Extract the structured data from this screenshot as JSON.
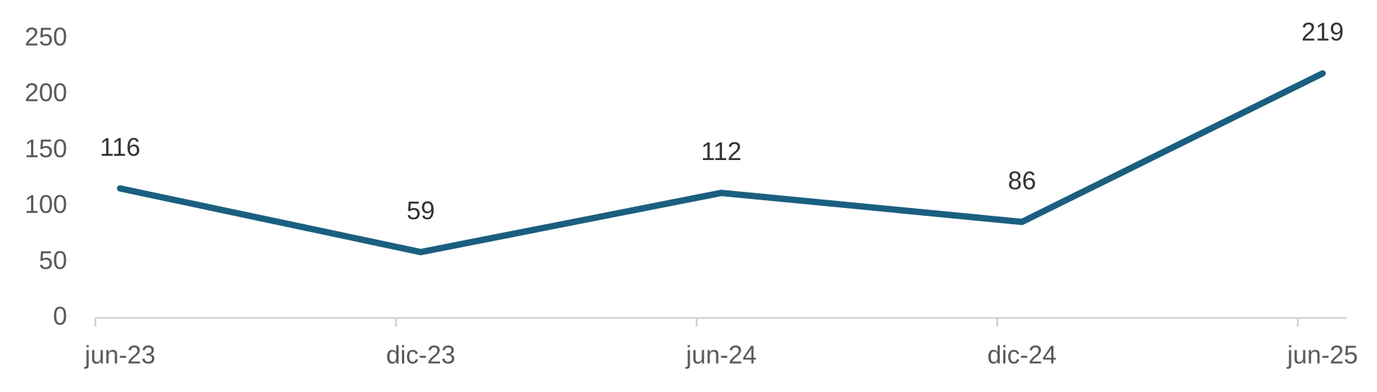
{
  "chart_data": {
    "type": "line",
    "categories": [
      "jun-23",
      "dic-23",
      "jun-24",
      "dic-24",
      "jun-25"
    ],
    "series": [
      {
        "color": "#1a5f80",
        "values": [
          116,
          59,
          112,
          86,
          219
        ]
      }
    ],
    "ylim": [
      0,
      250
    ],
    "yticks": [
      0,
      50,
      100,
      150,
      200,
      250
    ],
    "grid": false
  }
}
